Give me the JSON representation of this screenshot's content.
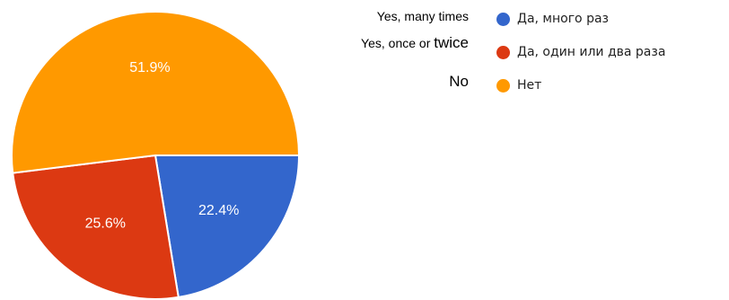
{
  "chart_data": {
    "type": "pie",
    "categories": [
      "Да, много раз",
      "Да, один или два раза",
      "Нет"
    ],
    "values": [
      22.4,
      25.6,
      51.9
    ],
    "value_labels": [
      "22.4%",
      "25.6%",
      "51.9%"
    ],
    "colors": [
      "#3366cc",
      "#dc3912",
      "#ff9900"
    ],
    "legend_position": "right"
  },
  "annotations": {
    "line1": "Yes, many times",
    "line2_prefix": "Yes, once or ",
    "line2_big": "twice",
    "line3": "No"
  }
}
